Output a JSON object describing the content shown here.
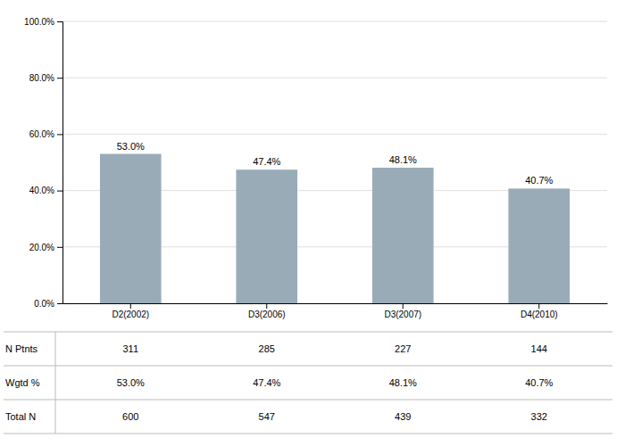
{
  "chart_data": {
    "type": "bar",
    "categories": [
      "D2(2002)",
      "D3(2006)",
      "D3(2007)",
      "D4(2010)"
    ],
    "values": [
      53.0,
      47.4,
      48.1,
      40.7
    ],
    "value_labels": [
      "53.0%",
      "47.4%",
      "48.1%",
      "40.7%"
    ],
    "data_labels": true,
    "color": "#9aabb8",
    "ylim": [
      0,
      100
    ],
    "yticks": [
      {
        "value": 0,
        "label": "0.0%"
      },
      {
        "value": 20,
        "label": "20.0%"
      },
      {
        "value": 40,
        "label": "40.0%"
      },
      {
        "value": 60,
        "label": "60.0%"
      },
      {
        "value": 80,
        "label": "80.0%"
      },
      {
        "value": 100,
        "label": "100.0%"
      }
    ],
    "grid": true,
    "table": {
      "rows": [
        {
          "label": "N Ptnts",
          "values": [
            311,
            285,
            227,
            144
          ]
        },
        {
          "label": "Wgtd %",
          "values": [
            53.0,
            47.4,
            48.1,
            40.7
          ],
          "value_labels": [
            "53.0%",
            "47.4%",
            "48.1%",
            "40.7%"
          ]
        },
        {
          "label": "Total N",
          "values": [
            600,
            547,
            439,
            332
          ]
        }
      ]
    }
  }
}
